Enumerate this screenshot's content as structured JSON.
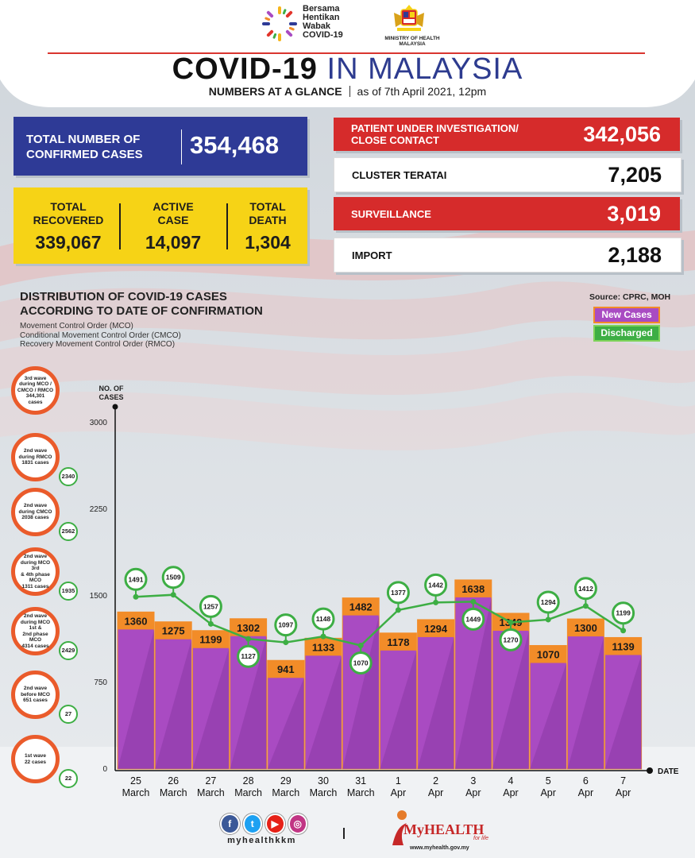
{
  "header": {
    "campaign_logo_text": [
      "Bersama",
      "Hentikan",
      "Wabak",
      "COVID-19"
    ],
    "ministry": [
      "MINISTRY OF HEALTH",
      "MALAYSIA"
    ],
    "title_bold": "COVID-19",
    "title_light": "IN MALAYSIA",
    "subtitle_bold": "NUMBERS AT A GLANCE",
    "subtitle_date": "as of 7th April 2021, 12pm"
  },
  "summary": {
    "total_label_1": "TOTAL NUMBER OF",
    "total_label_2": "CONFIRMED CASES",
    "total_value": "354,468",
    "recovered_label_1": "TOTAL",
    "recovered_label_2": "RECOVERED",
    "recovered_value": "339,067",
    "active_label_1": "ACTIVE",
    "active_label_2": "CASE",
    "active_value": "14,097",
    "death_label_1": "TOTAL",
    "death_label_2": "DEATH",
    "death_value": "1,304"
  },
  "right_stats": {
    "pui_label_1": "PATIENT UNDER INVESTIGATION/",
    "pui_label_2": "CLOSE CONTACT",
    "pui_value": "342,056",
    "cluster_label": "CLUSTER TERATAI",
    "cluster_value": "7,205",
    "surveillance_label": "SURVEILLANCE",
    "surveillance_value": "3,019",
    "import_label": "IMPORT",
    "import_value": "2,188"
  },
  "distribution": {
    "title_1": "DISTRIBUTION OF COVID-19 CASES",
    "title_2": "ACCORDING TO DATE OF CONFIRMATION",
    "notes": [
      "Movement Control Order (MCO)",
      "Conditional Movement Control Order (CMCO)",
      "Recovery Movement Control Order (RMCO)"
    ],
    "source": "Source: CPRC, MOH",
    "legend_new": "New Cases",
    "legend_discharged": "Discharged"
  },
  "waves": [
    {
      "lines": [
        "3rd wave",
        "during MCO /",
        "CMCO / RMCO",
        "344,301",
        "cases"
      ],
      "badge": ""
    },
    {
      "lines": [
        "2nd wave",
        "during RMCO",
        "1831 cases"
      ],
      "badge": "2340"
    },
    {
      "lines": [
        "2nd wave",
        "during CMCO",
        "2038 cases"
      ],
      "badge": "2562"
    },
    {
      "lines": [
        "2nd wave",
        "during MCO 3rd",
        "& 4th phase MCO",
        "1311 cases"
      ],
      "badge": "1935"
    },
    {
      "lines": [
        "2nd wave",
        "during MCO 1st &",
        "2nd phase MCO",
        "4314 cases"
      ],
      "badge": "2429"
    },
    {
      "lines": [
        "2nd wave",
        "before MCO",
        "651 cases"
      ],
      "badge": "27"
    },
    {
      "lines": [
        "1st wave",
        "22 cases"
      ],
      "badge": "22"
    }
  ],
  "footer": {
    "handle": "myhealthkkm",
    "brand": "MyHEALTH",
    "tagline": "for life",
    "url": "www.myhealth.gov.my",
    "social_icons": [
      "facebook-icon",
      "twitter-icon",
      "youtube-icon",
      "instagram-icon"
    ]
  },
  "colors": {
    "navy": "#2e3a96",
    "yellow": "#f6d316",
    "red": "#d62b2b",
    "bar_purple": "#a94bc2",
    "bar_orange": "#f28c28",
    "line_green": "#3dae44"
  },
  "chart_data": {
    "type": "bar",
    "ylabel": "NO. OF CASES",
    "xlabel": "DATE",
    "ylim": [
      0,
      3000
    ],
    "yticks": [
      0,
      750,
      1500,
      2250,
      3000
    ],
    "categories": [
      [
        "25",
        "March"
      ],
      [
        "26",
        "March"
      ],
      [
        "27",
        "March"
      ],
      [
        "28",
        "March"
      ],
      [
        "29",
        "March"
      ],
      [
        "30",
        "March"
      ],
      [
        "31",
        "March"
      ],
      [
        "1",
        "Apr"
      ],
      [
        "2",
        "Apr"
      ],
      [
        "3",
        "Apr"
      ],
      [
        "4",
        "Apr"
      ],
      [
        "5",
        "Apr"
      ],
      [
        "6",
        "Apr"
      ],
      [
        "7",
        "Apr"
      ]
    ],
    "series": [
      {
        "name": "New Cases",
        "type": "bar",
        "values": [
          1360,
          1275,
          1199,
          1302,
          941,
          1133,
          1482,
          1178,
          1294,
          1638,
          1349,
          1070,
          1300,
          1139
        ]
      },
      {
        "name": "Discharged",
        "type": "line",
        "values": [
          1491,
          1509,
          1257,
          1127,
          1097,
          1148,
          1070,
          1377,
          1442,
          1449,
          1270,
          1294,
          1412,
          1199
        ]
      }
    ],
    "discharged_label_side": [
      "above",
      "above",
      "above",
      "below",
      "above",
      "above",
      "below",
      "above",
      "above",
      "below",
      "below",
      "above",
      "above",
      "above"
    ]
  }
}
